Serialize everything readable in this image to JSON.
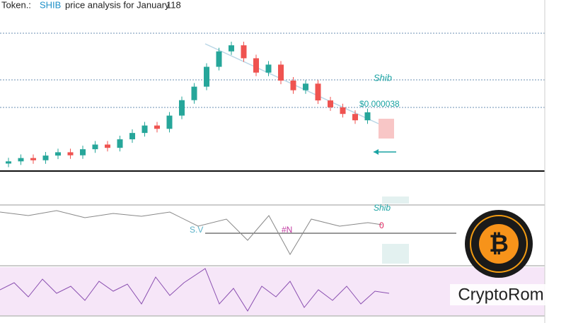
{
  "chart_data": {
    "type": "candlestick",
    "title": {
      "prefix": "Token.:",
      "ticker": "SHIB",
      "text": "price  analysis for January",
      "number": "118"
    },
    "ylim": [
      1.5e-05,
      6.5e-05
    ],
    "up_color": "#26a69a",
    "down_color": "#ef5350",
    "open": [
      1.72e-05,
      1.8e-05,
      1.92e-05,
      1.84e-05,
      2.01e-05,
      2.13e-05,
      2.02e-05,
      2.24e-05,
      2.41e-05,
      2.29e-05,
      2.6e-05,
      2.83e-05,
      3.1e-05,
      2.98e-05,
      3.46e-05,
      4.02e-05,
      4.51e-05,
      5.23e-05,
      5.79e-05,
      6.01e-05,
      5.54e-05,
      5.02e-05,
      5.31e-05,
      4.73e-05,
      4.38e-05,
      4.62e-05,
      4.01e-05,
      3.76e-05,
      3.52e-05,
      3.29e-05
    ],
    "high": [
      1.93e-05,
      2.05e-05,
      2.05e-05,
      2.14e-05,
      2.26e-05,
      2.26e-05,
      2.37e-05,
      2.54e-05,
      2.54e-05,
      2.73e-05,
      2.96e-05,
      3.23e-05,
      3.23e-05,
      3.59e-05,
      4.15e-05,
      4.64e-05,
      5.36e-05,
      5.92e-05,
      6.14e-05,
      6.14e-05,
      5.67e-05,
      5.44e-05,
      5.44e-05,
      4.86e-05,
      4.75e-05,
      4.75e-05,
      4.14e-05,
      3.89e-05,
      3.65e-05,
      3.71e-05
    ],
    "low": [
      1.59e-05,
      1.67e-05,
      1.71e-05,
      1.71e-05,
      1.88e-05,
      1.89e-05,
      1.89e-05,
      2.11e-05,
      2.16e-05,
      2.16e-05,
      2.47e-05,
      2.7e-05,
      2.85e-05,
      2.85e-05,
      3.33e-05,
      3.89e-05,
      4.38e-05,
      5.1e-05,
      5.66e-05,
      5.41e-05,
      4.89e-05,
      4.89e-05,
      4.6e-05,
      4.25e-05,
      4.25e-05,
      3.88e-05,
      3.63e-05,
      3.39e-05,
      3.16e-05,
      3.16e-05
    ],
    "close": [
      1.8e-05,
      1.92e-05,
      1.84e-05,
      2.01e-05,
      2.13e-05,
      2.02e-05,
      2.24e-05,
      2.41e-05,
      2.29e-05,
      2.6e-05,
      2.83e-05,
      3.1e-05,
      2.98e-05,
      3.46e-05,
      4.02e-05,
      4.51e-05,
      5.23e-05,
      5.79e-05,
      6.01e-05,
      5.54e-05,
      5.02e-05,
      5.31e-05,
      4.73e-05,
      4.38e-05,
      4.62e-05,
      4.01e-05,
      3.76e-05,
      3.52e-05,
      3.29e-05,
      3.58e-05
    ],
    "annotations": {
      "shib": "Shib",
      "price": "$0.000038",
      "sv": "S.V",
      "n": "#N",
      "shib2": "Shib",
      "zero": "0"
    },
    "brand": "CryptoRom",
    "logo": "₿"
  }
}
